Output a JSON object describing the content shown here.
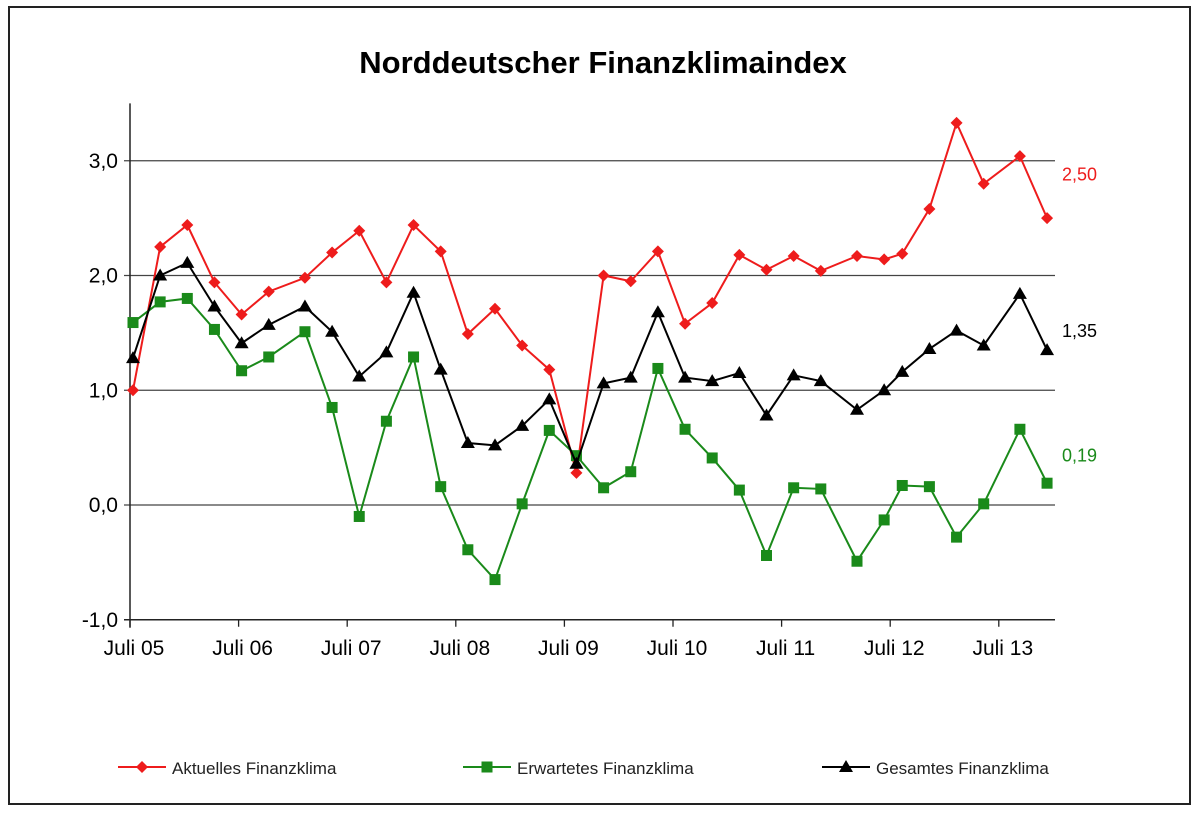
{
  "chart_data": {
    "type": "line",
    "title": "Norddeutscher Finanzklimaindex",
    "xlabel": "",
    "ylabel": "",
    "ylim": [
      -1.0,
      3.5
    ],
    "yticks": [
      "-1,0",
      "0,0",
      "1,0",
      "2,0",
      "3,0"
    ],
    "ytick_values": [
      -1,
      0,
      1,
      2,
      3
    ],
    "xtick_labels": [
      "Juli 05",
      "Juli 06",
      "Juli 07",
      "Juli 08",
      "Juli 09",
      "Juli 10",
      "Juli 11",
      "Juli 12",
      "Juli 13"
    ],
    "xtick_dates": [
      "2005-07",
      "2006-07",
      "2007-07",
      "2008-07",
      "2009-07",
      "2010-07",
      "2011-07",
      "2012-07",
      "2013-07"
    ],
    "grid": "horizontal",
    "legend_position": "bottom",
    "x": [
      "2005-07",
      "2005-10",
      "2006-01",
      "2006-04",
      "2006-07",
      "2006-10",
      "2007-02",
      "2007-05",
      "2007-08",
      "2007-11",
      "2008-02",
      "2008-05",
      "2008-08",
      "2008-11",
      "2009-02",
      "2009-05",
      "2009-08",
      "2009-11",
      "2010-02",
      "2010-05",
      "2010-08",
      "2010-11",
      "2011-02",
      "2011-05",
      "2011-08",
      "2011-11",
      "2012-03",
      "2012-06",
      "2012-08",
      "2012-11",
      "2013-02",
      "2013-05",
      "2013-09",
      "2013-12"
    ],
    "series": [
      {
        "name": "Aktuelles Finanzklima",
        "color": "#ee1c1c",
        "marker": "diamond",
        "end_label": "2,50",
        "values": [
          1.0,
          2.25,
          2.44,
          1.94,
          1.66,
          1.86,
          1.98,
          2.2,
          2.39,
          1.94,
          2.44,
          2.21,
          1.49,
          1.71,
          1.39,
          1.18,
          0.28,
          2.0,
          1.95,
          2.21,
          1.58,
          1.76,
          2.18,
          2.05,
          2.17,
          2.04,
          2.17,
          2.14,
          2.19,
          2.58,
          3.33,
          2.8,
          3.04,
          2.5
        ]
      },
      {
        "name": "Erwartetes Finanzklima",
        "color": "#1a8a1a",
        "marker": "square",
        "end_label": "0,19",
        "values": [
          1.59,
          1.77,
          1.8,
          1.53,
          1.17,
          1.29,
          1.51,
          0.85,
          -0.1,
          0.73,
          1.29,
          0.16,
          -0.39,
          -0.65,
          0.01,
          0.65,
          0.43,
          0.15,
          0.29,
          1.19,
          0.66,
          0.41,
          0.13,
          -0.44,
          0.15,
          0.14,
          -0.49,
          -0.13,
          0.17,
          0.16,
          -0.28,
          0.01,
          0.66,
          0.19
        ]
      },
      {
        "name": "Gesamtes Finanzklima",
        "color": "#000000",
        "marker": "triangle",
        "end_label": "1,35",
        "values": [
          1.28,
          2.0,
          2.11,
          1.73,
          1.41,
          1.57,
          1.73,
          1.51,
          1.12,
          1.33,
          1.85,
          1.18,
          0.54,
          0.52,
          0.69,
          0.92,
          0.36,
          1.06,
          1.11,
          1.68,
          1.11,
          1.08,
          1.15,
          0.78,
          1.13,
          1.08,
          0.83,
          1.0,
          1.16,
          1.36,
          1.52,
          1.39,
          1.84,
          1.35
        ]
      }
    ]
  }
}
